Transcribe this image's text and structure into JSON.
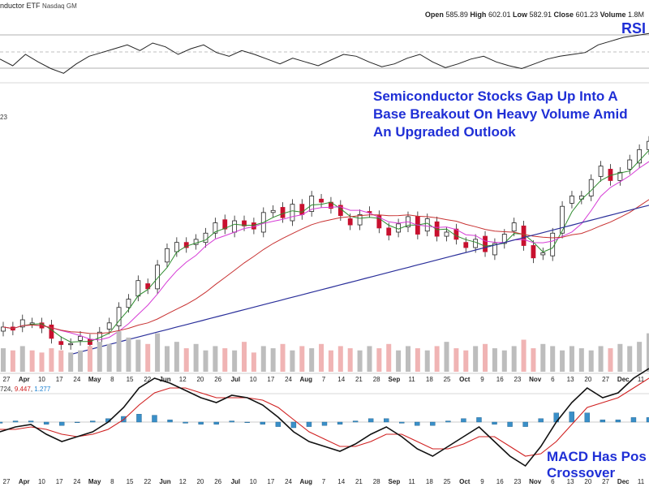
{
  "header": {
    "title": "nductor ETF",
    "exchange": "Nasdaq GM",
    "ohlc": {
      "open_label": "Open",
      "open": "585.89",
      "high_label": "High",
      "high": "602.01",
      "low_label": "Low",
      "low": "582.91",
      "close_label": "Close",
      "close": "601.23",
      "volume_label": "Volume",
      "volume": "1.8M"
    }
  },
  "annotations": {
    "main": "Semiconductor Stocks Gap Up Into A Base Breakout On Heavy Volume Amid An Upgraded Outlook",
    "rsi": "RSI",
    "macd": "MACD Has Pos Crossover"
  },
  "side_label": "23",
  "macd_legend": {
    "a": "724",
    "b": "9.447",
    "c": "1.277"
  },
  "x_labels": [
    "27",
    "Apr",
    "10",
    "17",
    "24",
    "May",
    "8",
    "15",
    "22",
    "Jun",
    "12",
    "20",
    "26",
    "Jul",
    "10",
    "17",
    "24",
    "Aug",
    "7",
    "14",
    "21",
    "28",
    "Sep",
    "11",
    "18",
    "25",
    "Oct",
    "9",
    "16",
    "23",
    "Nov",
    "6",
    "13",
    "20",
    "27",
    "Dec",
    "11"
  ],
  "colors": {
    "up": "#ffffff",
    "down": "#c8102e",
    "candle_edge": "#222222",
    "sma_short": "#2e8b2e",
    "sma_mid": "#d63cd6",
    "sma_long": "#c83232",
    "sma_200": "#2a2f9a",
    "macd": "#111111",
    "signal": "#d02020",
    "histogram": "#3a8fc8",
    "rsi_fill": "#5a8a3a",
    "annotation": "#1f2fd6"
  },
  "chart_data": [
    {
      "type": "candlestick",
      "title": "nductor ETF",
      "x_axis": "date",
      "y_label": "",
      "close_series_approx": [
        421,
        418,
        428,
        425,
        420,
        410,
        404,
        405,
        412,
        404,
        416,
        425,
        440,
        448,
        466,
        458,
        481,
        497,
        503,
        498,
        506,
        512,
        522,
        516,
        524,
        519,
        516,
        532,
        534,
        527,
        540,
        530,
        548,
        542,
        536,
        529,
        520,
        530,
        532,
        517,
        510,
        521,
        528,
        511,
        526,
        509,
        513,
        506,
        498,
        506,
        494,
        502,
        511,
        522,
        500,
        488,
        493,
        512,
        538,
        548,
        548,
        564,
        577,
        563,
        571,
        583,
        593,
        601
      ],
      "series": [
        {
          "name": "",
          "kind": "sma_short"
        },
        {
          "name": "",
          "kind": "sma_mid"
        },
        {
          "name": "",
          "kind": "sma_long"
        },
        {
          "name": "",
          "kind": "sma_200"
        }
      ],
      "volume_approx": [
        1.1,
        1.0,
        1.2,
        1.0,
        0.9,
        1.1,
        1.0,
        0.9,
        1.0,
        1.2,
        1.4,
        1.3,
        1.9,
        1.6,
        1.5,
        1.3,
        1.8,
        1.2,
        1.4,
        1.1,
        1.3,
        1.0,
        1.2,
        1.1,
        1.0,
        1.4,
        0.9,
        1.2,
        1.1,
        1.3,
        1.0,
        1.2,
        1.1,
        1.3,
        1.0,
        1.2,
        1.1,
        1.0,
        1.2,
        1.1,
        1.3,
        1.0,
        1.2,
        1.1,
        1.0,
        1.2,
        1.4,
        1.1,
        1.0,
        1.2,
        1.3,
        1.1,
        1.0,
        1.2,
        1.5,
        1.1,
        1.3,
        1.2,
        1.0,
        1.2,
        1.1,
        1.0,
        1.2,
        1.1,
        1.3,
        1.2,
        1.4,
        1.8
      ],
      "ohlc_last": {
        "open": 585.89,
        "high": 602.01,
        "low": 582.91,
        "close": 601.23,
        "volume": "1.8M"
      }
    },
    {
      "type": "line",
      "title": "RSI",
      "values_approx": [
        55,
        48,
        60,
        52,
        45,
        40,
        50,
        58,
        62,
        66,
        70,
        64,
        72,
        68,
        60,
        66,
        70,
        62,
        58,
        64,
        60,
        55,
        50,
        56,
        52,
        48,
        54,
        60,
        58,
        52,
        47,
        50,
        56,
        60,
        52,
        46,
        50,
        55,
        58,
        52,
        48,
        45,
        50,
        55,
        58,
        60,
        62,
        70,
        74,
        78,
        80,
        82
      ]
    },
    {
      "type": "line",
      "title": "MACD",
      "legend_values": [
        "724",
        "9.447",
        "1.277"
      ],
      "macd_approx": [
        -4,
        -2,
        -1,
        -5,
        -8,
        -6,
        -4,
        0,
        6,
        14,
        18,
        16,
        13,
        10,
        8,
        11,
        10,
        7,
        2,
        -4,
        -8,
        -10,
        -12,
        -9,
        -5,
        -2,
        -6,
        -11,
        -14,
        -10,
        -6,
        -2,
        -8,
        -14,
        -18,
        -10,
        0,
        8,
        14,
        10,
        12,
        18,
        22
      ],
      "signal_approx": [
        -3,
        -3,
        -2,
        -3,
        -5,
        -6,
        -5,
        -3,
        1,
        7,
        12,
        14,
        14,
        12,
        10,
        10,
        10,
        9,
        6,
        1,
        -4,
        -7,
        -10,
        -10,
        -8,
        -5,
        -5,
        -8,
        -11,
        -11,
        -9,
        -6,
        -6,
        -10,
        -14,
        -13,
        -8,
        -1,
        6,
        8,
        10,
        14,
        18
      ]
    }
  ]
}
